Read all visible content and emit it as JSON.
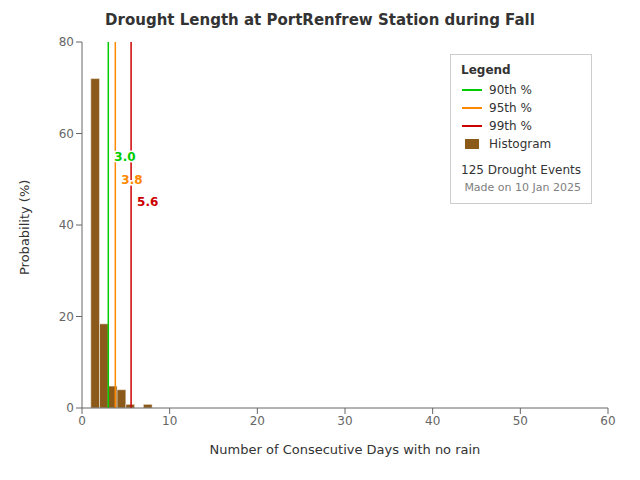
{
  "chart_data": {
    "type": "histogram",
    "title": "Drought Length at PortRenfrew Station during Fall",
    "xlabel": "Number of Consecutive Days with no rain",
    "ylabel": "Probability (%)",
    "bins": [
      0,
      1,
      2,
      3,
      4,
      5,
      6,
      7,
      8,
      9,
      10
    ],
    "values": [
      0.0,
      72.0,
      18.4,
      4.8,
      4.0,
      0.8,
      0.0,
      0.8,
      0.0,
      0.0
    ],
    "name": "Histogram",
    "color": "#8B5A1A",
    "xlim": [
      0,
      60
    ],
    "ylim": [
      0,
      80
    ],
    "xticks": [
      0,
      10,
      20,
      30,
      40,
      50,
      60
    ],
    "yticks": [
      0,
      20,
      40,
      60,
      80
    ],
    "grid": false,
    "legend": "upper right",
    "legend_title": "Legend",
    "percentiles": [
      {
        "name": "90th %",
        "color": "#00CC00",
        "value": 3.0,
        "label": "3.0",
        "label_y": 55
      },
      {
        "name": "95th %",
        "color": "#FF8800",
        "value": 3.8,
        "label": "3.8",
        "label_y": 50
      },
      {
        "name": "99th %",
        "color": "#CC0000",
        "value": 5.6,
        "label": "5.6",
        "label_y": 45
      }
    ],
    "annotations": [
      "125 Drought Events",
      "Made on 10 Jan 2025"
    ]
  }
}
